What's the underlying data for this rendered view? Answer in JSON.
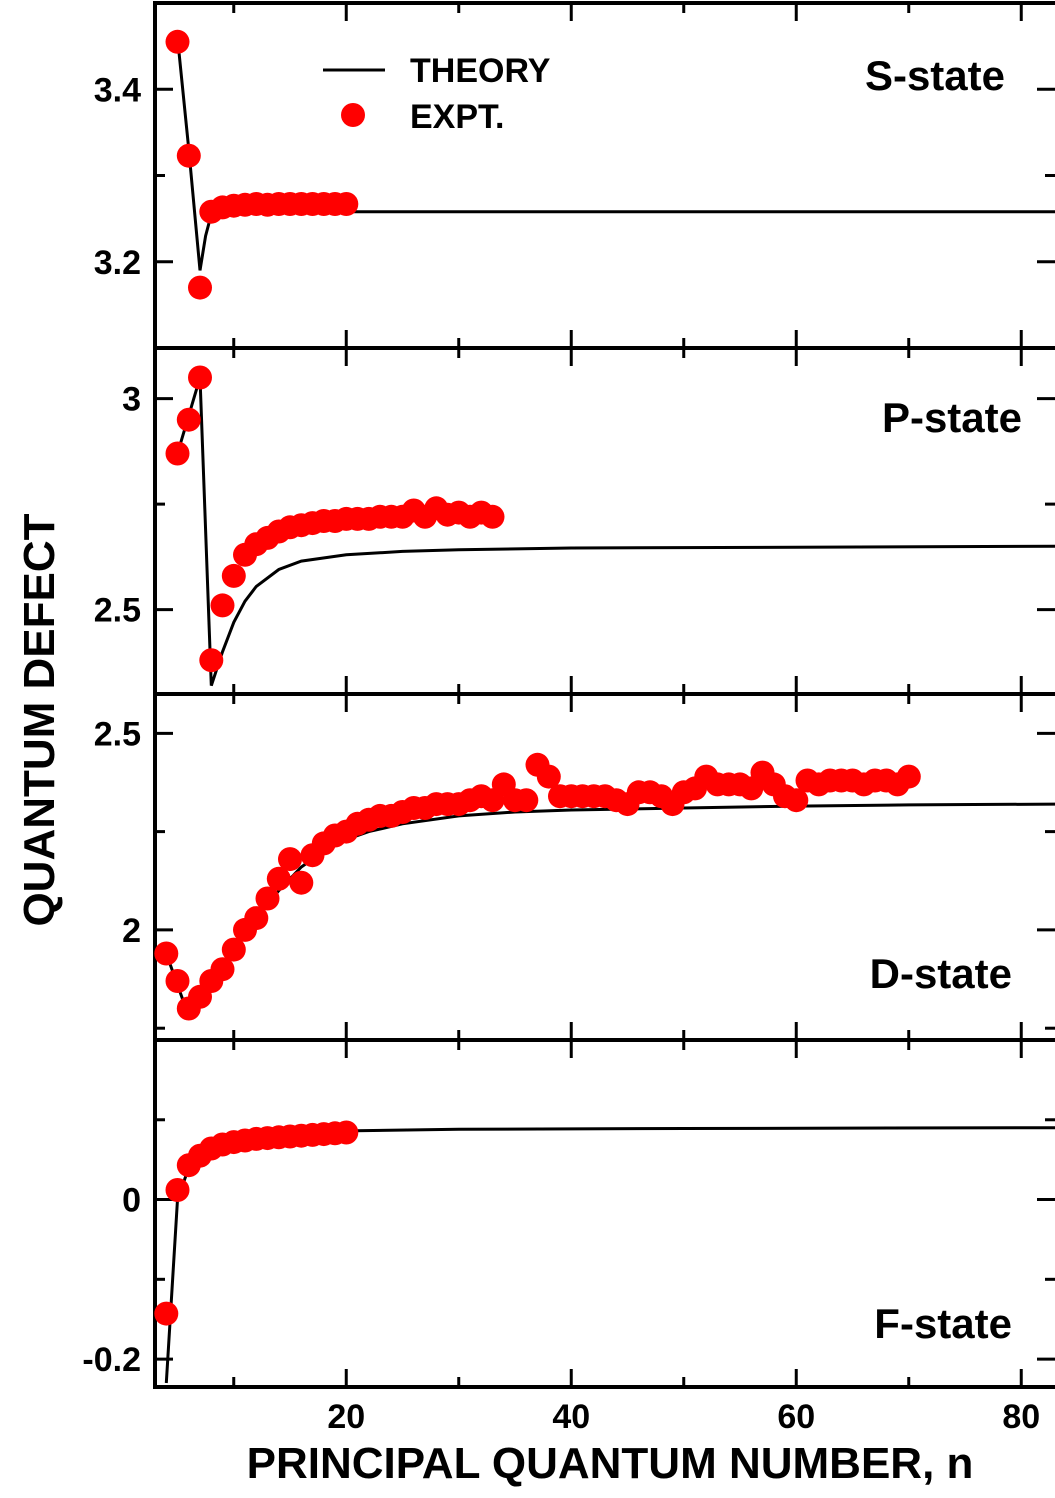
{
  "chart_data": [
    {
      "type": "scatter",
      "panel_label": "S-state",
      "xlim": [
        3,
        83
      ],
      "ylim": [
        3.1,
        3.5
      ],
      "yticks": [
        3.2,
        3.4
      ],
      "ytick_labels": [
        "3.2",
        "3.4"
      ],
      "legend": {
        "placement": "top-center",
        "entries": [
          "THEORY",
          "EXPT."
        ]
      },
      "series": [
        {
          "name": "THEORY",
          "kind": "line",
          "x": [
            5,
            6,
            7,
            7.5,
            8,
            10,
            14,
            20,
            30,
            50,
            83
          ],
          "y": [
            3.46,
            3.33,
            3.19,
            3.23,
            3.255,
            3.258,
            3.258,
            3.258,
            3.258,
            3.258,
            3.258
          ]
        },
        {
          "name": "EXPT.",
          "kind": "points",
          "x": [
            5,
            6,
            7,
            8,
            9,
            10,
            11,
            12,
            13,
            14,
            15,
            16,
            17,
            18,
            19,
            20
          ],
          "y": [
            3.455,
            3.323,
            3.17,
            3.258,
            3.263,
            3.265,
            3.266,
            3.267,
            3.266,
            3.267,
            3.267,
            3.267,
            3.267,
            3.267,
            3.267,
            3.267
          ]
        }
      ]
    },
    {
      "type": "scatter",
      "panel_label": "P-state",
      "xlim": [
        3,
        83
      ],
      "ylim": [
        2.3,
        3.12
      ],
      "yticks": [
        2.5,
        3
      ],
      "ytick_labels": [
        "2.5",
        "3"
      ],
      "series": [
        {
          "name": "",
          "kind": "line",
          "x": [
            5,
            6,
            7,
            8,
            8.5,
            9,
            10,
            11,
            12,
            14,
            16,
            20,
            25,
            30,
            40,
            60,
            83
          ],
          "y": [
            2.87,
            2.96,
            3.05,
            2.32,
            2.36,
            2.4,
            2.47,
            2.52,
            2.555,
            2.595,
            2.615,
            2.63,
            2.638,
            2.642,
            2.646,
            2.648,
            2.65
          ]
        },
        {
          "name": "",
          "kind": "points",
          "x": [
            5,
            6,
            7,
            8,
            9,
            10,
            11,
            12,
            13,
            14,
            15,
            16,
            17,
            18,
            19,
            20,
            21,
            22,
            23,
            24,
            25,
            26,
            27,
            28,
            29,
            30,
            31,
            32,
            33
          ],
          "y": [
            2.87,
            2.95,
            3.05,
            2.38,
            2.51,
            2.58,
            2.63,
            2.655,
            2.67,
            2.685,
            2.695,
            2.7,
            2.705,
            2.71,
            2.71,
            2.715,
            2.715,
            2.715,
            2.72,
            2.72,
            2.72,
            2.735,
            2.72,
            2.74,
            2.725,
            2.73,
            2.72,
            2.73,
            2.72
          ]
        }
      ]
    },
    {
      "type": "scatter",
      "panel_label": "D-state",
      "xlim": [
        3,
        83
      ],
      "ylim": [
        1.72,
        2.6
      ],
      "yticks": [
        2,
        2.5
      ],
      "ytick_labels": [
        "2",
        "2.5"
      ],
      "series": [
        {
          "name": "",
          "kind": "line",
          "x": [
            4,
            5,
            6,
            7,
            8,
            10,
            12,
            14,
            16,
            18,
            20,
            22,
            25,
            30,
            35,
            40,
            50,
            60,
            70,
            83
          ],
          "y": [
            1.94,
            1.86,
            1.78,
            1.82,
            1.86,
            1.95,
            2.03,
            2.1,
            2.16,
            2.2,
            2.23,
            2.25,
            2.27,
            2.29,
            2.3,
            2.305,
            2.31,
            2.315,
            2.318,
            2.32
          ]
        },
        {
          "name": "",
          "kind": "points",
          "x": [
            4,
            5,
            6,
            7,
            8,
            9,
            10,
            11,
            12,
            13,
            14,
            15,
            16,
            17,
            18,
            19,
            20,
            21,
            22,
            23,
            24,
            25,
            26,
            27,
            28,
            29,
            30,
            31,
            32,
            33,
            34,
            35,
            36,
            37,
            38,
            39,
            40,
            41,
            42,
            43,
            44,
            45,
            46,
            47,
            48,
            49,
            50,
            51,
            52,
            53,
            54,
            55,
            56,
            57,
            58,
            59,
            60,
            61,
            62,
            63,
            64,
            65,
            66,
            67,
            68,
            69,
            70
          ],
          "y": [
            1.94,
            1.87,
            1.8,
            1.83,
            1.87,
            1.9,
            1.95,
            2.0,
            2.03,
            2.08,
            2.13,
            2.18,
            2.12,
            2.19,
            2.22,
            2.24,
            2.25,
            2.27,
            2.28,
            2.29,
            2.29,
            2.3,
            2.31,
            2.31,
            2.32,
            2.32,
            2.32,
            2.33,
            2.34,
            2.33,
            2.37,
            2.33,
            2.33,
            2.42,
            2.39,
            2.34,
            2.34,
            2.34,
            2.34,
            2.34,
            2.33,
            2.32,
            2.35,
            2.35,
            2.34,
            2.32,
            2.35,
            2.36,
            2.39,
            2.37,
            2.37,
            2.37,
            2.36,
            2.4,
            2.37,
            2.34,
            2.33,
            2.38,
            2.37,
            2.38,
            2.38,
            2.38,
            2.37,
            2.38,
            2.38,
            2.37,
            2.39
          ]
        }
      ]
    },
    {
      "type": "scatter",
      "panel_label": "F-state",
      "xlim": [
        3,
        83
      ],
      "ylim": [
        -0.235,
        0.2
      ],
      "yticks": [
        -0.2,
        0
      ],
      "ytick_labels": [
        "-0.2",
        "0"
      ],
      "series": [
        {
          "name": "",
          "kind": "line",
          "x": [
            4,
            5,
            6,
            7,
            8,
            10,
            12,
            15,
            20,
            30,
            50,
            83
          ],
          "y": [
            -0.23,
            0.0,
            0.04,
            0.055,
            0.065,
            0.073,
            0.078,
            0.082,
            0.086,
            0.088,
            0.089,
            0.09
          ]
        },
        {
          "name": "",
          "kind": "points",
          "x": [
            4,
            5,
            6,
            7,
            8,
            9,
            10,
            11,
            12,
            13,
            14,
            15,
            16,
            17,
            18,
            19,
            20
          ],
          "y": [
            -0.143,
            0.012,
            0.043,
            0.055,
            0.064,
            0.069,
            0.072,
            0.074,
            0.076,
            0.077,
            0.078,
            0.079,
            0.08,
            0.081,
            0.082,
            0.083,
            0.084
          ]
        }
      ]
    }
  ],
  "shared_axes": {
    "xticks": [
      20,
      40,
      60,
      80
    ],
    "xtick_labels": [
      "20",
      "40",
      "60",
      "80"
    ],
    "xlabel": "PRINCIPAL QUANTUM NUMBER, n",
    "ylabel": "QUANTUM DEFECT",
    "grid": false
  },
  "colors": {
    "theory_line": "#000000",
    "expt_points": "#ff0000"
  }
}
